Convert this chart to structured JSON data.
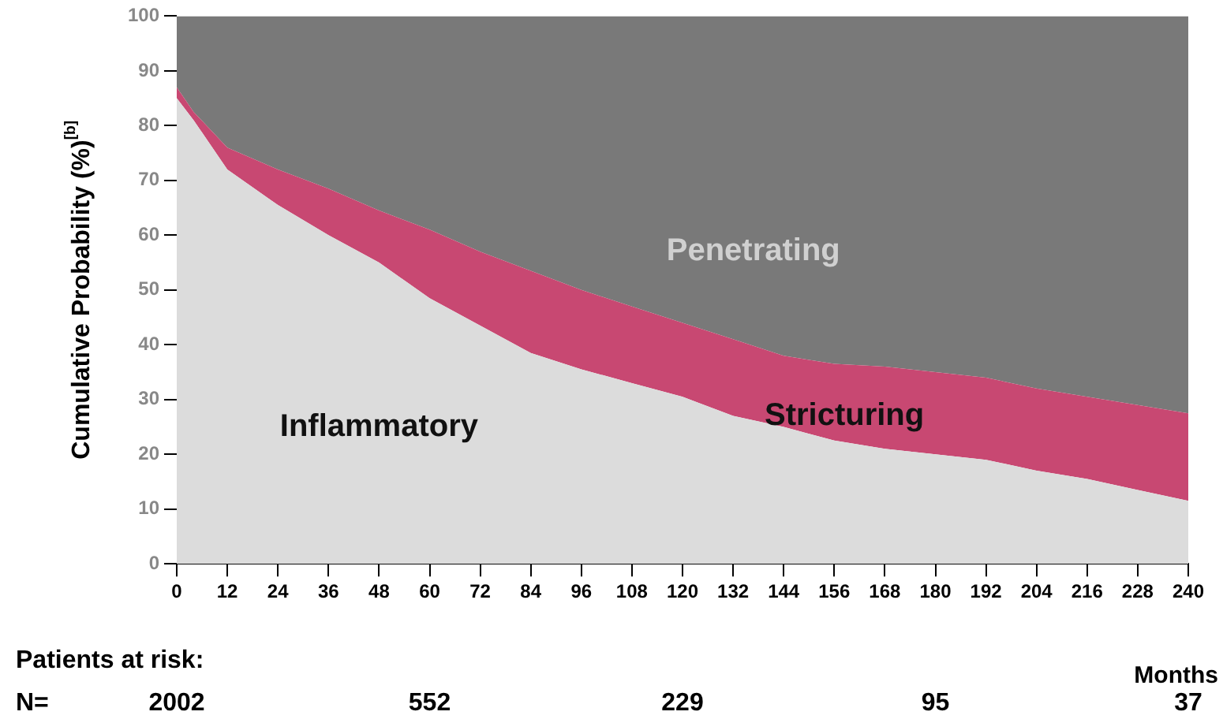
{
  "chart_data": {
    "type": "area",
    "stacked": true,
    "ylabel": "Cumulative Probability (%)$^{[b]}$",
    "xlabel": "Months",
    "x": [
      0,
      4,
      12,
      24,
      36,
      48,
      60,
      72,
      84,
      96,
      108,
      120,
      132,
      144,
      156,
      168,
      180,
      192,
      204,
      216,
      228,
      240
    ],
    "xlim": [
      0,
      240
    ],
    "xticks": [
      0,
      12,
      24,
      36,
      48,
      60,
      72,
      84,
      96,
      108,
      120,
      132,
      144,
      156,
      168,
      180,
      192,
      204,
      216,
      228,
      240
    ],
    "ylim": [
      0,
      100
    ],
    "yticks": [
      0,
      10,
      20,
      30,
      40,
      50,
      60,
      70,
      80,
      90,
      100
    ],
    "grid": false,
    "legend": false,
    "series": [
      {
        "name": "Inflammatory",
        "color": "#dcdcdc",
        "values": [
          85,
          81,
          72,
          65.5,
          60,
          55,
          48.5,
          43.5,
          38.5,
          35.5,
          33,
          30.5,
          27,
          25,
          22.5,
          21,
          20,
          19,
          17,
          15.5,
          13.5,
          11.5
        ]
      },
      {
        "name": "Stricturing",
        "color": "#c84872",
        "values": [
          2,
          1.5,
          4,
          6.5,
          8.5,
          9.5,
          12.5,
          13.5,
          15,
          14.5,
          14,
          13.5,
          14,
          13,
          14,
          15,
          15,
          15,
          15,
          15,
          15.5,
          16
        ]
      },
      {
        "name": "Penetrating",
        "color": "#797979",
        "values": [
          13,
          17.5,
          24,
          28,
          31.5,
          35.5,
          39,
          43,
          46.5,
          50,
          53,
          56,
          59,
          62,
          63.5,
          64,
          65,
          66,
          68,
          69.5,
          71,
          72.5
        ]
      }
    ],
    "annotations": [
      "Patients at risk:",
      "N=",
      "2002",
      "552",
      "229",
      "95",
      "37"
    ]
  }
}
